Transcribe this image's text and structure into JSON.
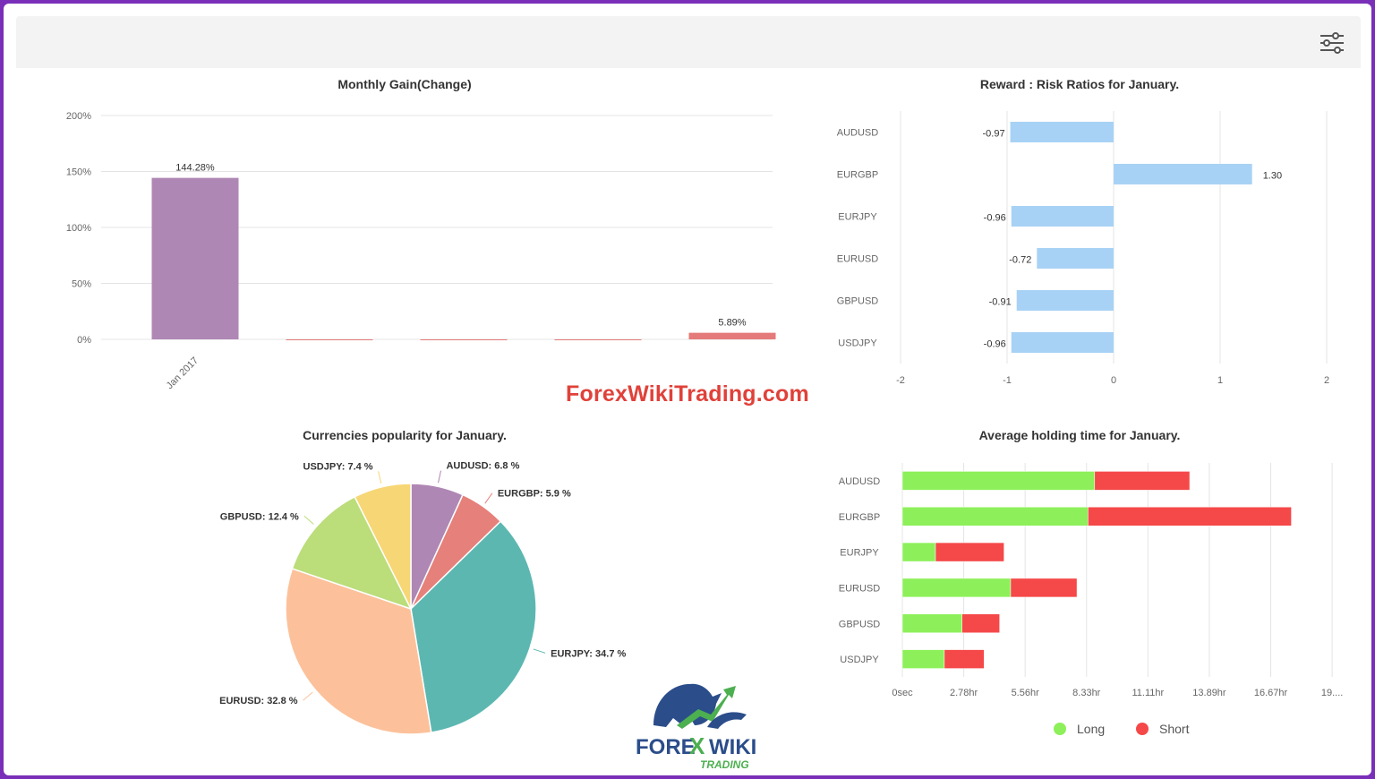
{
  "watermark": "ForexWikiTrading.com",
  "logo": {
    "brand_1": "FORE",
    "brand_x": "X",
    "brand_2": "WIKI",
    "brand_sub": "TRADING"
  },
  "toolbar": {
    "settings_icon": "sliders-icon"
  },
  "colors": {
    "purple": "#af87b4",
    "red": "#e57a7a",
    "blue": "#a8d2f5",
    "green": "#8df05a",
    "short_red": "#f54848",
    "teal": "#5cb7b1",
    "peach": "#fcc19a",
    "lime": "#bbdd7a",
    "yellow": "#f7d675",
    "salmon": "#e5807a",
    "frame": "#7a2fb8"
  },
  "chart_data": [
    {
      "type": "bar",
      "title": "Monthly Gain(Change)",
      "ylim": [
        0,
        200
      ],
      "yticks": [
        "0%",
        "50%",
        "100%",
        "150%",
        "200%"
      ],
      "categories": [
        "Jan 2017",
        "",
        "",
        "",
        ""
      ],
      "values": [
        144.28,
        0,
        0,
        0,
        5.89
      ],
      "data_labels": [
        "144.28%",
        "",
        "",
        "",
        "5.89%"
      ],
      "grid": true
    },
    {
      "type": "bar",
      "orientation": "horizontal",
      "title": "Reward : Risk Ratios for January.",
      "categories": [
        "AUDUSD",
        "EURGBP",
        "EURJPY",
        "EURUSD",
        "GBPUSD",
        "USDJPY"
      ],
      "values": [
        -0.97,
        1.3,
        -0.96,
        -0.72,
        -0.91,
        -0.96
      ],
      "data_labels": [
        "-0.97",
        "1.30",
        "-0.96",
        "-0.72",
        "-0.91",
        "-0.96"
      ],
      "xlim": [
        -2,
        2
      ],
      "xticks": [
        "-2",
        "-1",
        "0",
        "1",
        "2"
      ],
      "grid": true
    },
    {
      "type": "pie",
      "title": "Currencies popularity for January.",
      "slices": [
        {
          "label": "AUDUSD: 6.8 %",
          "value": 6.8,
          "color": "#af87b4"
        },
        {
          "label": "EURGBP: 5.9 %",
          "value": 5.9,
          "color": "#e5807a"
        },
        {
          "label": "EURJPY: 34.7 %",
          "value": 34.7,
          "color": "#5cb7b1"
        },
        {
          "label": "EURUSD: 32.8 %",
          "value": 32.8,
          "color": "#fcc19a"
        },
        {
          "label": "GBPUSD: 12.4 %",
          "value": 12.4,
          "color": "#bbdd7a"
        },
        {
          "label": "USDJPY: 7.4 %",
          "value": 7.4,
          "color": "#f7d675"
        }
      ]
    },
    {
      "type": "bar",
      "orientation": "horizontal",
      "stacked": true,
      "title": "Average holding time for January.",
      "categories": [
        "AUDUSD",
        "EURGBP",
        "EURJPY",
        "EURUSD",
        "GBPUSD",
        "USDJPY"
      ],
      "xticks": [
        "0sec",
        "2.78hr",
        "5.56hr",
        "8.33hr",
        "11.11hr",
        "13.89hr",
        "16.67hr",
        "19...."
      ],
      "xlim": [
        0,
        19.44
      ],
      "series": [
        {
          "name": "Long",
          "values": [
            8.7,
            8.4,
            1.5,
            4.9,
            2.7,
            1.9
          ],
          "color": "#8df05a"
        },
        {
          "name": "Short",
          "values": [
            4.3,
            9.2,
            3.1,
            3.0,
            1.7,
            1.8
          ],
          "color": "#f54848"
        }
      ],
      "legend": "bottom"
    }
  ]
}
